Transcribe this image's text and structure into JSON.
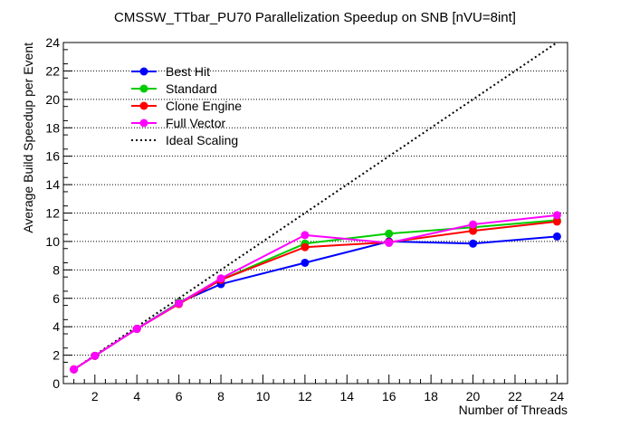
{
  "chart_data": {
    "type": "line",
    "title": "CMSSW_TTbar_PU70 Parallelization Speedup on SNB [nVU=8int]",
    "xlabel": "Number of Threads",
    "ylabel": "Average Build Speedup per Event",
    "xlim": [
      0.5,
      24.5
    ],
    "ylim": [
      0,
      24
    ],
    "xticks": [
      2,
      4,
      6,
      8,
      10,
      12,
      14,
      16,
      18,
      20,
      22,
      24
    ],
    "yticks": [
      0,
      2,
      4,
      6,
      8,
      10,
      12,
      14,
      16,
      18,
      20,
      22,
      24
    ],
    "grid": "horizontal dotted",
    "legend_position": "top-left",
    "series": [
      {
        "name": "Best Hit",
        "color": "#0000ff",
        "x": [
          1,
          2,
          4,
          6,
          8,
          12,
          16,
          20,
          24
        ],
        "y": [
          1.0,
          1.95,
          3.85,
          5.7,
          7.0,
          8.5,
          10.0,
          9.85,
          10.35
        ]
      },
      {
        "name": "Standard",
        "color": "#00cc00",
        "x": [
          1,
          2,
          4,
          6,
          8,
          12,
          16,
          20,
          24
        ],
        "y": [
          1.0,
          1.95,
          3.85,
          5.7,
          7.3,
          9.85,
          10.55,
          11.0,
          11.5
        ]
      },
      {
        "name": "Clone Engine",
        "color": "#ff0000",
        "x": [
          1,
          2,
          4,
          6,
          8,
          12,
          16,
          20,
          24
        ],
        "y": [
          1.0,
          1.95,
          3.85,
          5.6,
          7.3,
          9.6,
          9.95,
          10.75,
          11.4
        ]
      },
      {
        "name": "Full Vector",
        "color": "#ff00ff",
        "x": [
          1,
          2,
          4,
          6,
          8,
          12,
          16,
          20,
          24
        ],
        "y": [
          1.0,
          1.95,
          3.85,
          5.65,
          7.4,
          10.45,
          9.9,
          11.2,
          11.85
        ]
      }
    ],
    "reference_line": {
      "name": "Ideal Scaling",
      "color": "#000000",
      "style": "dotted",
      "x": [
        1,
        24
      ],
      "y": [
        1,
        24
      ]
    }
  }
}
